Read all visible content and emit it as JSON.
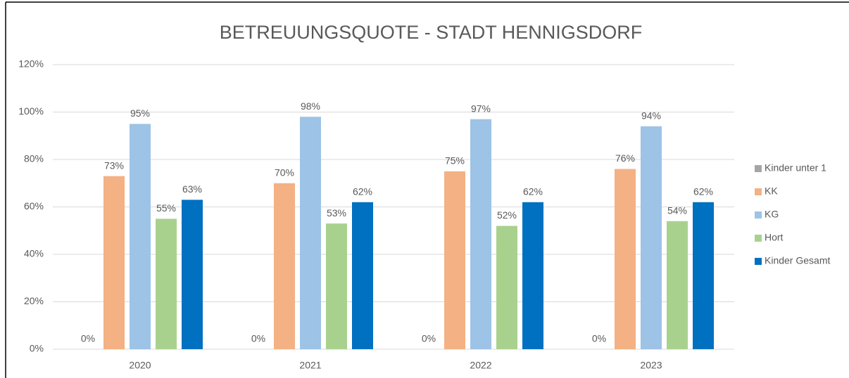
{
  "chart_data": {
    "type": "bar",
    "title": "BETREUUNGSQUOTE - STADT HENNIGSDORF",
    "categories": [
      "2020",
      "2021",
      "2022",
      "2023"
    ],
    "series": [
      {
        "name": "Kinder unter 1",
        "color": "#a5a5a5",
        "values": [
          0,
          0,
          0,
          0
        ],
        "value_labels": [
          "0%",
          "0%",
          "0%",
          "0%"
        ]
      },
      {
        "name": "KK",
        "color": "#f4b183",
        "values": [
          73,
          70,
          75,
          76
        ],
        "value_labels": [
          "73%",
          "70%",
          "75%",
          "76%"
        ]
      },
      {
        "name": "KG",
        "color": "#9dc3e6",
        "values": [
          95,
          98,
          97,
          94
        ],
        "value_labels": [
          "95%",
          "98%",
          "97%",
          "94%"
        ]
      },
      {
        "name": "Hort",
        "color": "#a9d18e",
        "values": [
          55,
          53,
          52,
          54
        ],
        "value_labels": [
          "55%",
          "53%",
          "52%",
          "54%"
        ]
      },
      {
        "name": "Kinder Gesamt",
        "color": "#0070c0",
        "values": [
          63,
          62,
          62,
          62
        ],
        "value_labels": [
          "63%",
          "62%",
          "62%",
          "62%"
        ]
      }
    ],
    "ylim": [
      0,
      120
    ],
    "yticks": [
      {
        "value": 0,
        "label": "0%"
      },
      {
        "value": 20,
        "label": "20%"
      },
      {
        "value": 40,
        "label": "40%"
      },
      {
        "value": 60,
        "label": "60%"
      },
      {
        "value": 80,
        "label": "80%"
      },
      {
        "value": 100,
        "label": "100%"
      },
      {
        "value": 120,
        "label": "120%"
      }
    ],
    "grid": true,
    "legend": "right"
  }
}
